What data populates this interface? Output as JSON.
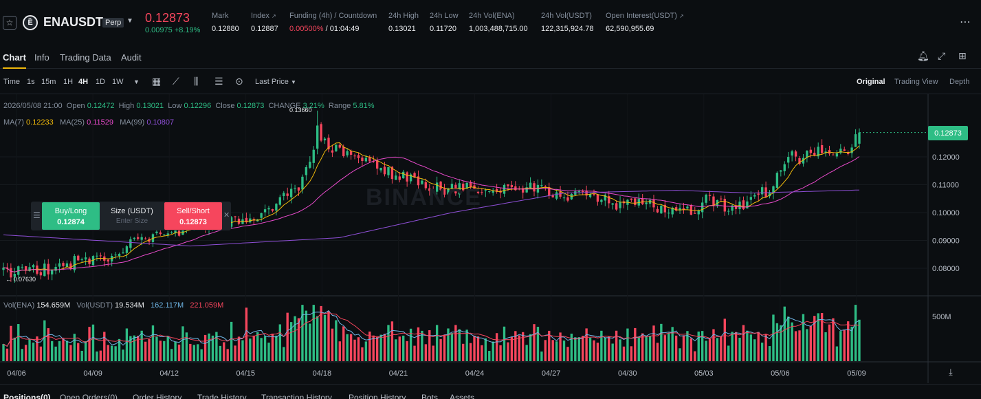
{
  "ticker": {
    "symbol": "ENAUSDT",
    "badge": "Perp",
    "last_price": "0.12873",
    "change_abs": "0.00975",
    "change_pct": "+8.19%",
    "stats": [
      {
        "label": "Mark",
        "value": "0.12880"
      },
      {
        "label": "Index",
        "value": "0.12887"
      },
      {
        "label": "Funding (4h) / Countdown",
        "value_red": "0.00500%",
        "value": "/ 01:04:49"
      },
      {
        "label": "24h High",
        "value": "0.13021"
      },
      {
        "label": "24h Low",
        "value": "0.11720"
      },
      {
        "label": "24h Vol(ENA)",
        "value": "1,003,488,715.00"
      },
      {
        "label": "24h Vol(USDT)",
        "value": "122,315,924.78"
      },
      {
        "label": "Open Interest(USDT)",
        "value": "62,590,955.69"
      }
    ]
  },
  "tabs": [
    "Chart",
    "Info",
    "Trading Data",
    "Audit"
  ],
  "toolbar": {
    "intervals": [
      "Time",
      "1s",
      "15m",
      "1H",
      "4H",
      "1D",
      "1W"
    ],
    "active_interval": "4H",
    "price_type": "Last Price",
    "views": [
      "Original",
      "Trading View",
      "Depth"
    ],
    "active_view": "Original"
  },
  "ohlc": {
    "date": "2026/05/08 21:00",
    "open_label": "Open",
    "open": "0.12472",
    "high_label": "High",
    "high": "0.13021",
    "low_label": "Low",
    "low": "0.12296",
    "close_label": "Close",
    "close": "0.12873",
    "change_label": "CHANGE",
    "change": "3.21%",
    "range_label": "Range",
    "range": "5.81%"
  },
  "ma": {
    "ma7_label": "MA(7)",
    "ma7": "0.12233",
    "ma25_label": "MA(25)",
    "ma25": "0.11529",
    "ma99_label": "MA(99)",
    "ma99": "0.10807"
  },
  "volume": {
    "label": "Vol(ENA)",
    "ena": "154.659M",
    "usdt_label": "Vol(USDT)",
    "usdt": "19.534M",
    "ma5": "162.117M",
    "ma10": "221.059M",
    "axis_tick": "500M"
  },
  "quick_order": {
    "buy_label": "Buy/Long",
    "buy_price": "0.12874",
    "size_label": "Size (USDT)",
    "size_placeholder": "Enter Size",
    "sell_label": "Sell/Short",
    "sell_price": "0.12873"
  },
  "chart_markers": {
    "high": "0.13660",
    "low": "0.07630",
    "current_price": "0.12873"
  },
  "watermark": "BINANCE",
  "bottom_tabs": [
    "Positions(0)",
    "Open Orders(0)",
    "Order History",
    "Trade History",
    "Transaction History",
    "Position History",
    "Bots",
    "Assets"
  ],
  "colors": {
    "up": "#2ebd85",
    "down": "#f6465d",
    "ma7": "#f0b90b",
    "ma25": "#e84acb",
    "ma99": "#8e4fd6",
    "accent": "#f0b90b"
  },
  "chart_data": {
    "type": "candlestick",
    "y_ticks": [
      "0.12000",
      "0.11000",
      "0.10000",
      "0.09000",
      "0.08000"
    ],
    "y_range": [
      0.073,
      0.137
    ],
    "x_ticks": [
      "04/06",
      "04/09",
      "04/12",
      "04/15",
      "04/18",
      "04/21",
      "04/24",
      "04/27",
      "04/30",
      "05/03",
      "05/06",
      "05/09"
    ],
    "close_path": [
      [
        0,
        0.0785
      ],
      [
        14,
        0.08
      ],
      [
        22,
        0.0838
      ],
      [
        28,
        0.0822
      ],
      [
        33,
        0.0884
      ],
      [
        40,
        0.0908
      ],
      [
        48,
        0.0935
      ],
      [
        54,
        0.0964
      ],
      [
        60,
        0.0958
      ],
      [
        68,
        0.0985
      ],
      [
        74,
        0.104
      ],
      [
        80,
        0.111
      ],
      [
        82,
        0.12
      ],
      [
        84,
        0.129
      ],
      [
        86,
        0.125
      ],
      [
        92,
        0.12
      ],
      [
        98,
        0.118
      ],
      [
        104,
        0.114
      ],
      [
        110,
        0.1115
      ],
      [
        118,
        0.108
      ],
      [
        126,
        0.109
      ],
      [
        134,
        0.108
      ],
      [
        140,
        0.109
      ],
      [
        146,
        0.107
      ],
      [
        154,
        0.106
      ],
      [
        160,
        0.105
      ],
      [
        164,
        0.103
      ],
      [
        170,
        0.103
      ],
      [
        178,
        0.1015
      ],
      [
        184,
        0.1005
      ],
      [
        188,
        0.1045
      ],
      [
        192,
        0.103
      ],
      [
        196,
        0.101
      ],
      [
        200,
        0.105
      ],
      [
        206,
        0.109
      ],
      [
        210,
        0.122
      ],
      [
        214,
        0.119
      ],
      [
        218,
        0.124
      ],
      [
        222,
        0.12
      ],
      [
        226,
        0.122
      ],
      [
        229,
        0.1287
      ]
    ],
    "candle_count": 230,
    "ma99_path": [
      [
        0,
        0.092
      ],
      [
        50,
        0.088
      ],
      [
        90,
        0.091
      ],
      [
        120,
        0.1
      ],
      [
        150,
        0.107
      ],
      [
        180,
        0.108
      ],
      [
        200,
        0.107
      ],
      [
        229,
        0.1081
      ]
    ]
  }
}
